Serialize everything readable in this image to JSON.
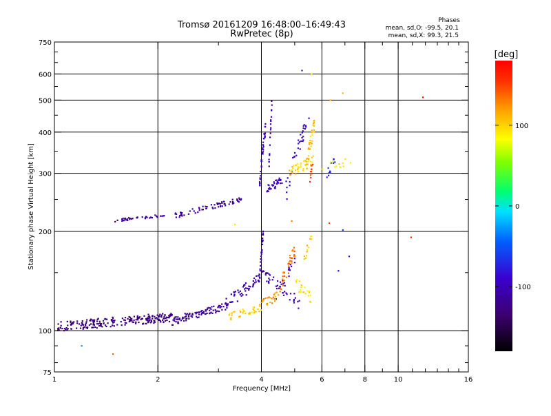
{
  "chart_data": {
    "type": "scatter",
    "title": "Tromsø 20161209 16:48:00–16:49:43",
    "subtitle": "RwPretec (8p)",
    "stats": {
      "heading": "Phases",
      "line1": "mean, sd,O: -99.5, 20.1",
      "line2": "mean, sd,X:  99.3, 21.5"
    },
    "xlabel": "Frequency [MHz]",
    "ylabel": "Stationary phase Virtual Height [km]",
    "x_scale": "log",
    "y_scale": "log",
    "xlim": [
      1,
      16
    ],
    "ylim": [
      75,
      750
    ],
    "x_ticks": [
      1,
      2,
      4,
      6,
      8,
      10,
      16
    ],
    "x_tick_labels": [
      "1",
      "2",
      "4",
      "6",
      "8",
      "10",
      "16"
    ],
    "x_minor_ticks": [
      3,
      5,
      7,
      9,
      11,
      12,
      13,
      14,
      15
    ],
    "y_ticks": [
      75,
      100,
      200,
      300,
      400,
      500,
      600,
      750
    ],
    "y_tick_labels": [
      "75",
      "100",
      "200",
      "300",
      "400",
      "500",
      "600",
      "750"
    ],
    "y_minor_ticks": [
      80,
      90,
      150,
      250,
      350,
      450,
      550,
      650,
      700
    ],
    "grid": true,
    "colorbar": {
      "label": "[deg]",
      "range": [
        -180,
        180
      ],
      "ticks": [
        100,
        0,
        -100
      ],
      "tick_labels": [
        "100",
        "0",
        "-100"
      ]
    },
    "series": [
      {
        "segments": [
          {
            "x0": 1.02,
            "x1": 2.2,
            "h0": 103,
            "h1": 110,
            "hs": 3.5,
            "phase": -130,
            "n": 230
          },
          {
            "x0": 2.2,
            "x1": 3.1,
            "h0": 107,
            "h1": 118,
            "hs": 3,
            "phase": -118,
            "n": 90
          },
          {
            "x0": 3.1,
            "x1": 4.0,
            "h0": 118,
            "h1": 145,
            "hs": 6,
            "phase": -108,
            "n": 60
          },
          {
            "x0": 3.95,
            "x1": 4.05,
            "h0": 145,
            "h1": 200,
            "hs": 6,
            "phase": -110,
            "n": 28
          },
          {
            "x0": 4.0,
            "x1": 5.2,
            "h0": 150,
            "h1": 120,
            "hs": 5,
            "phase": -105,
            "n": 45
          },
          {
            "x0": 4.4,
            "x1": 5.0,
            "h0": 122,
            "h1": 165,
            "hs": 6,
            "phase": -100,
            "n": 20
          },
          {
            "x0": 1.5,
            "x1": 1.8,
            "h0": 216,
            "h1": 220,
            "hs": 2,
            "phase": -125,
            "n": 22
          },
          {
            "x0": 1.8,
            "x1": 2.1,
            "h0": 220,
            "h1": 224,
            "hs": 2,
            "phase": -115,
            "n": 18
          },
          {
            "x0": 2.2,
            "x1": 3.5,
            "h0": 222,
            "h1": 250,
            "hs": 4,
            "phase": -115,
            "n": 70
          },
          {
            "x0": 3.95,
            "x1": 4.12,
            "h0": 280,
            "h1": 420,
            "hs": 15,
            "phase": -100,
            "n": 40
          },
          {
            "x0": 4.15,
            "x1": 4.6,
            "h0": 270,
            "h1": 285,
            "hs": 8,
            "phase": -100,
            "n": 35
          },
          {
            "x0": 4.2,
            "x1": 4.3,
            "h0": 300,
            "h1": 520,
            "hs": 20,
            "phase": -100,
            "n": 18
          },
          {
            "x0": 4.7,
            "x1": 5.5,
            "h0": 260,
            "h1": 440,
            "hs": 20,
            "phase": -95,
            "n": 35
          },
          {
            "x0": 6.2,
            "x1": 6.6,
            "h0": 300,
            "h1": 330,
            "hs": 10,
            "phase": -70,
            "n": 12
          }
        ]
      },
      {
        "segments": [
          {
            "x0": 3.2,
            "x1": 4.0,
            "h0": 110,
            "h1": 118,
            "hs": 3,
            "phase": 100,
            "n": 40
          },
          {
            "x0": 4.0,
            "x1": 4.5,
            "h0": 120,
            "h1": 128,
            "hs": 4,
            "phase": 120,
            "n": 25
          },
          {
            "x0": 4.5,
            "x1": 5.0,
            "h0": 130,
            "h1": 175,
            "hs": 8,
            "phase": 130,
            "n": 35
          },
          {
            "x0": 5.0,
            "x1": 5.6,
            "h0": 140,
            "h1": 125,
            "hs": 6,
            "phase": 95,
            "n": 20
          },
          {
            "x0": 5.3,
            "x1": 5.6,
            "h0": 160,
            "h1": 190,
            "hs": 8,
            "phase": 105,
            "n": 12
          },
          {
            "x0": 4.8,
            "x1": 5.7,
            "h0": 300,
            "h1": 330,
            "hs": 12,
            "phase": 100,
            "n": 45
          },
          {
            "x0": 5.45,
            "x1": 5.7,
            "h0": 330,
            "h1": 420,
            "hs": 20,
            "phase": 105,
            "n": 30
          },
          {
            "x0": 5.5,
            "x1": 5.65,
            "h0": 280,
            "h1": 320,
            "hs": 10,
            "phase": 150,
            "n": 10
          },
          {
            "x0": 6.0,
            "x1": 7.3,
            "h0": 310,
            "h1": 330,
            "hs": 10,
            "phase": 90,
            "n": 12
          }
        ]
      }
    ],
    "outliers": [
      {
        "x": 1.2,
        "y": 90,
        "phase": -30
      },
      {
        "x": 1.48,
        "y": 85,
        "phase": 140
      },
      {
        "x": 6.35,
        "y": 500,
        "phase": 110
      },
      {
        "x": 6.9,
        "y": 525,
        "phase": 110
      },
      {
        "x": 5.25,
        "y": 615,
        "phase": -100
      },
      {
        "x": 5.6,
        "y": 600,
        "phase": 90
      },
      {
        "x": 11.8,
        "y": 510,
        "phase": 170
      },
      {
        "x": 10.9,
        "y": 192,
        "phase": 165
      },
      {
        "x": 7.2,
        "y": 168,
        "phase": -90
      },
      {
        "x": 6.3,
        "y": 212,
        "phase": 150
      },
      {
        "x": 6.7,
        "y": 152,
        "phase": -80
      },
      {
        "x": 3.35,
        "y": 210,
        "phase": 95
      },
      {
        "x": 4.9,
        "y": 215,
        "phase": 130
      },
      {
        "x": 6.9,
        "y": 202,
        "phase": -60
      }
    ]
  }
}
